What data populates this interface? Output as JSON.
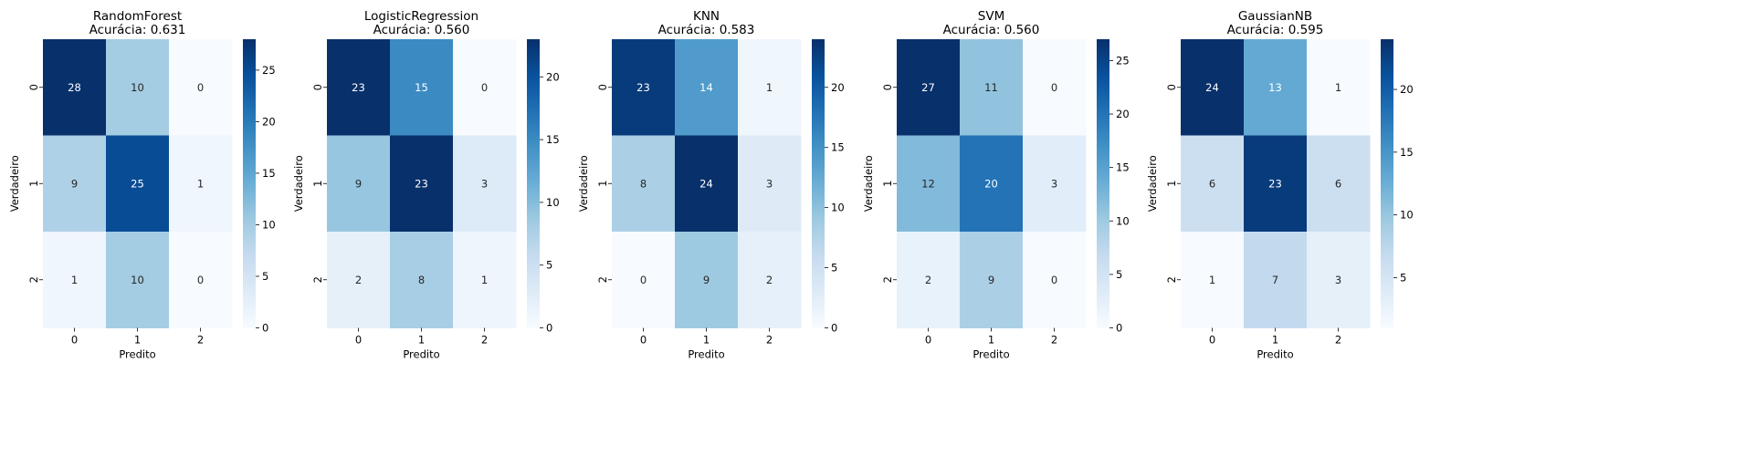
{
  "chart_data": [
    {
      "type": "heatmap",
      "title": "RandomForest",
      "subtitle": "Acurácia: 0.631",
      "xlabel": "Predito",
      "ylabel": "Verdadeiro",
      "x_categories": [
        "0",
        "1",
        "2"
      ],
      "y_categories": [
        "0",
        "1",
        "2"
      ],
      "values": [
        [
          28,
          10,
          0
        ],
        [
          9,
          25,
          1
        ],
        [
          1,
          10,
          0
        ]
      ],
      "colorbar_ticks": [
        0,
        5,
        10,
        15,
        20,
        25
      ],
      "colormap": "Blues"
    },
    {
      "type": "heatmap",
      "title": "LogisticRegression",
      "subtitle": "Acurácia: 0.560",
      "xlabel": "Predito",
      "ylabel": "Verdadeiro",
      "x_categories": [
        "0",
        "1",
        "2"
      ],
      "y_categories": [
        "0",
        "1",
        "2"
      ],
      "values": [
        [
          23,
          15,
          0
        ],
        [
          9,
          23,
          3
        ],
        [
          2,
          8,
          1
        ]
      ],
      "colorbar_ticks": [
        0,
        5,
        10,
        15,
        20
      ],
      "colormap": "Blues"
    },
    {
      "type": "heatmap",
      "title": "KNN",
      "subtitle": "Acurácia: 0.583",
      "xlabel": "Predito",
      "ylabel": "Verdadeiro",
      "x_categories": [
        "0",
        "1",
        "2"
      ],
      "y_categories": [
        "0",
        "1",
        "2"
      ],
      "values": [
        [
          23,
          14,
          1
        ],
        [
          8,
          24,
          3
        ],
        [
          0,
          9,
          2
        ]
      ],
      "colorbar_ticks": [
        0,
        5,
        10,
        15,
        20
      ],
      "colormap": "Blues"
    },
    {
      "type": "heatmap",
      "title": "SVM",
      "subtitle": "Acurácia: 0.560",
      "xlabel": "Predito",
      "ylabel": "Verdadeiro",
      "x_categories": [
        "0",
        "1",
        "2"
      ],
      "y_categories": [
        "0",
        "1",
        "2"
      ],
      "values": [
        [
          27,
          11,
          0
        ],
        [
          12,
          20,
          3
        ],
        [
          2,
          9,
          0
        ]
      ],
      "colorbar_ticks": [
        0,
        5,
        10,
        15,
        20,
        25
      ],
      "colormap": "Blues"
    },
    {
      "type": "heatmap",
      "title": "GaussianNB",
      "subtitle": "Acurácia: 0.595",
      "xlabel": "Predito",
      "ylabel": "Verdadeiro",
      "x_categories": [
        "0",
        "1",
        "2"
      ],
      "y_categories": [
        "0",
        "1",
        "2"
      ],
      "values": [
        [
          24,
          13,
          1
        ],
        [
          6,
          23,
          6
        ],
        [
          1,
          7,
          3
        ]
      ],
      "colorbar_ticks": [
        5,
        10,
        15,
        20
      ],
      "colormap": "Blues"
    }
  ]
}
